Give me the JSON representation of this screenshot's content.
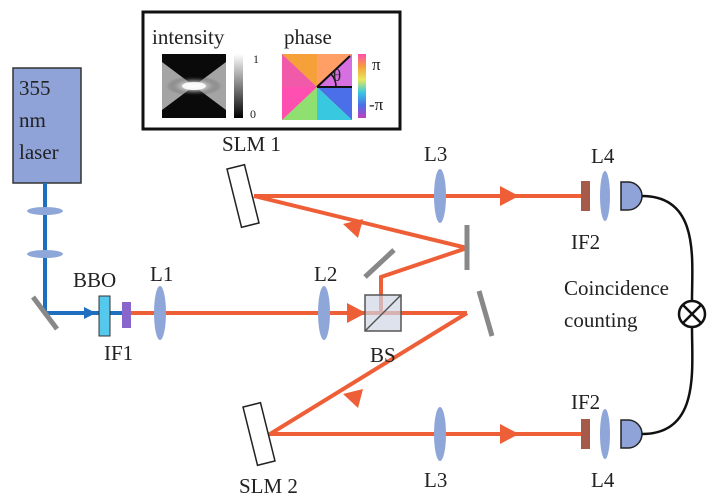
{
  "laser": {
    "line1": "355",
    "line2": "nm",
    "line3": "laser"
  },
  "inset": {
    "intensity_label": "intensity",
    "intensity_max": "1",
    "intensity_min": "0",
    "phase_label": "phase",
    "phase_angle": "θ",
    "phase_max": "π",
    "phase_min": "-π"
  },
  "components": {
    "bbo": "BBO",
    "if1": "IF1",
    "l1": "L1",
    "l2": "L2",
    "bs": "BS",
    "slm1": "SLM 1",
    "slm2": "SLM 2",
    "l3_top": "L3",
    "l3_bottom": "L3",
    "l4_top": "L4",
    "l4_bottom": "L4",
    "if2_top": "IF2",
    "if2_bottom": "IF2"
  },
  "coincidence": {
    "line1": "Coincidence",
    "line2": "counting"
  },
  "colors": {
    "pump_beam": "#1f6fc0",
    "photon_beam": "#ee5f37",
    "lens": "#8fa6d8",
    "laser_box": "#8fa3d8",
    "detector": "#8fa3d8",
    "filter_if": "#a65a4a",
    "bbo_crystal": "#55c8ee",
    "if1_filter": "#8866cc",
    "mirror": "#808080"
  }
}
